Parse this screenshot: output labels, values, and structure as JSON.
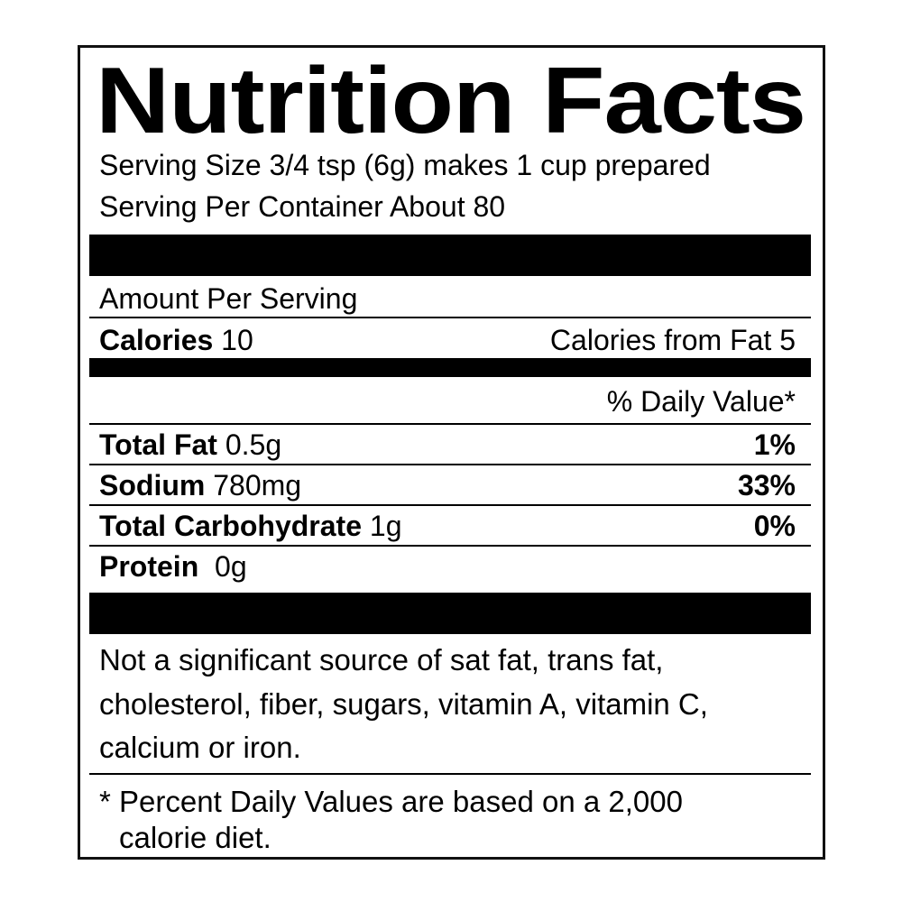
{
  "title": "Nutrition Facts",
  "serving_size": "Serving Size 3/4 tsp (6g) makes 1 cup prepared",
  "servings_per_container": "Serving Per Container About 80",
  "amount_per_serving": "Amount Per Serving",
  "calories": {
    "label": "Calories",
    "value": "10",
    "from_fat": "Calories from Fat 5"
  },
  "daily_value_header": "% Daily Value*",
  "nutrients": [
    {
      "name": "Total Fat",
      "amount": "0.5g",
      "dv": "1%"
    },
    {
      "name": "Sodium",
      "amount": "780mg",
      "dv": "33%"
    },
    {
      "name": "Total Carbohydrate",
      "amount": "1g",
      "dv": "0%"
    },
    {
      "name": "Protein",
      "amount": "0g",
      "dv": ""
    }
  ],
  "notice": [
    "Not a significant source of sat fat, trans fat,",
    "cholesterol, fiber, sugars, vitamin A, vitamin C,",
    "calcium or iron."
  ],
  "footnote": [
    "* Percent Daily Values are based on a 2,000",
    "calorie diet."
  ]
}
